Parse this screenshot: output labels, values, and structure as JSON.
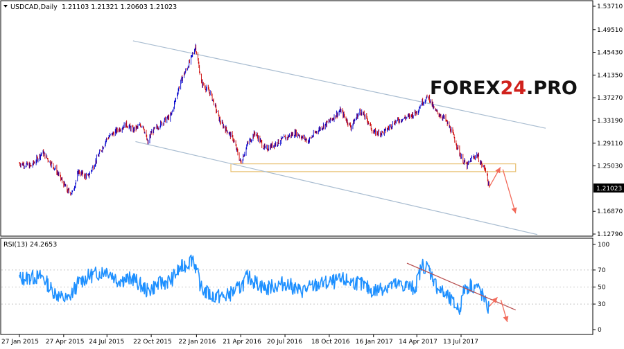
{
  "chart_data": [
    {
      "type": "candlestick",
      "symbol": "USDCAD,Daily",
      "ohlc_label": "1.21103 1.21321 1.20603 1.21023",
      "last_price_label": "1.21023",
      "last_price": 1.21023,
      "ylim": [
        1.1279,
        1.5371
      ],
      "y_ticks": [
        "1.53710",
        "1.49510",
        "1.45430",
        "1.41350",
        "1.37270",
        "1.33190",
        "1.29110",
        "1.25030",
        "1.21023",
        "1.16870",
        "1.12790"
      ],
      "x_tick_labels": [
        "27 Jan 2015",
        "27 Apr 2015",
        "24 Jul 2015",
        "22 Oct 2015",
        "22 Jan 2016",
        "21 Apr 2016",
        "20 Jul 2016",
        "18 Oct 2016",
        "16 Jan 2017",
        "14 Apr 2017",
        "13 Jul 2017"
      ],
      "price_path": [
        [
          "27 Jan 2015",
          1.255
        ],
        [
          "20 Feb 2015",
          1.25
        ],
        [
          "15 Mar 2015",
          1.275
        ],
        [
          "10 Apr 2015",
          1.245
        ],
        [
          "05 May 2015",
          1.205
        ],
        [
          "15 May 2015",
          1.202
        ],
        [
          "27 May 2015",
          1.24
        ],
        [
          "15 Jun 2015",
          1.23
        ],
        [
          "24 Jul 2015",
          1.3
        ],
        [
          "15 Aug 2015",
          1.315
        ],
        [
          "01 Sep 2015",
          1.325
        ],
        [
          "15 Sep 2015",
          1.315
        ],
        [
          "05 Oct 2015",
          1.325
        ],
        [
          "15 Oct 2015",
          1.29
        ],
        [
          "22 Oct 2015",
          1.31
        ],
        [
          "15 Nov 2015",
          1.33
        ],
        [
          "01 Dec 2015",
          1.34
        ],
        [
          "20 Dec 2015",
          1.4
        ],
        [
          "10 Jan 2016",
          1.44
        ],
        [
          "20 Jan 2016",
          1.466
        ],
        [
          "01 Feb 2016",
          1.4
        ],
        [
          "20 Feb 2016",
          1.38
        ],
        [
          "10 Mar 2016",
          1.33
        ],
        [
          "05 Apr 2016",
          1.3
        ],
        [
          "21 Apr 2016",
          1.256
        ],
        [
          "05 May 2016",
          1.29
        ],
        [
          "20 May 2016",
          1.31
        ],
        [
          "10 Jun 2016",
          1.28
        ],
        [
          "20 Jul 2016",
          1.3
        ],
        [
          "10 Aug 2016",
          1.31
        ],
        [
          "05 Sep 2016",
          1.295
        ],
        [
          "25 Sep 2016",
          1.315
        ],
        [
          "18 Oct 2016",
          1.33
        ],
        [
          "10 Nov 2016",
          1.35
        ],
        [
          "01 Dec 2016",
          1.32
        ],
        [
          "20 Dec 2016",
          1.35
        ],
        [
          "05 Jan 2017",
          1.33
        ],
        [
          "16 Jan 2017",
          1.31
        ],
        [
          "05 Feb 2017",
          1.31
        ],
        [
          "01 Mar 2017",
          1.33
        ],
        [
          "01 Apr 2017",
          1.34
        ],
        [
          "14 Apr 2017",
          1.348
        ],
        [
          "25 Apr 2017",
          1.365
        ],
        [
          "08 May 2017",
          1.375
        ],
        [
          "20 May 2017",
          1.35
        ],
        [
          "10 Jun 2017",
          1.335
        ],
        [
          "25 Jun 2017",
          1.31
        ],
        [
          "13 Jul 2017",
          1.266
        ],
        [
          "25 Jul 2017",
          1.25
        ],
        [
          "05 Aug 2017",
          1.265
        ],
        [
          "15 Aug 2017",
          1.27
        ],
        [
          "25 Aug 2017",
          1.25
        ],
        [
          "01 Sep 2017",
          1.245
        ],
        [
          "08 Sep 2017",
          1.21
        ]
      ],
      "channel_lines": [
        [
          [
            "15 Sep 2015",
            1.475
          ],
          [
            "01 Jan 2018",
            1.318
          ]
        ],
        [
          [
            "20 Sep 2015",
            1.294
          ],
          [
            "15 Dec 2017",
            1.127
          ]
        ]
      ],
      "support_zone": {
        "from": "01 Apr 2016",
        "to": "01 Nov 2017",
        "low": 1.24,
        "high": 1.254
      },
      "forecast_arrows": [
        [
          [
            "08 Sep 2017",
            1.212
          ],
          [
            "01 Oct 2017",
            1.248
          ]
        ],
        [
          [
            "06 Oct 2017",
            1.244
          ],
          [
            "01 Nov 2017",
            1.165
          ]
        ]
      ]
    },
    {
      "type": "line",
      "indicator": "RSI(13)",
      "label": "RSI(13) 24.2653",
      "ylim": [
        0,
        100
      ],
      "y_ticks": [
        "100",
        "70",
        "50",
        "30",
        "0"
      ],
      "levels": [
        70,
        50,
        30
      ],
      "rsi_path": [
        [
          "27 Jan 2015",
          60
        ],
        [
          "15 Mar 2015",
          62
        ],
        [
          "01 Apr 2015",
          48
        ],
        [
          "20 Apr 2015",
          38
        ],
        [
          "05 May 2015",
          35
        ],
        [
          "27 May 2015",
          55
        ],
        [
          "15 Jun 2015",
          62
        ],
        [
          "24 Jul 2015",
          70
        ],
        [
          "15 Aug 2015",
          58
        ],
        [
          "15 Sep 2015",
          60
        ],
        [
          "15 Oct 2015",
          45
        ],
        [
          "01 Nov 2015",
          52
        ],
        [
          "01 Dec 2015",
          58
        ],
        [
          "20 Dec 2015",
          72
        ],
        [
          "05 Jan 2016",
          78
        ],
        [
          "15 Jan 2016",
          85
        ],
        [
          "01 Feb 2016",
          48
        ],
        [
          "20 Feb 2016",
          40
        ],
        [
          "20 Mar 2016",
          38
        ],
        [
          "21 Apr 2016",
          50
        ],
        [
          "05 May 2016",
          62
        ],
        [
          "10 Jun 2016",
          48
        ],
        [
          "20 Jul 2016",
          55
        ],
        [
          "20 Aug 2016",
          45
        ],
        [
          "20 Sep 2016",
          52
        ],
        [
          "18 Oct 2016",
          55
        ],
        [
          "15 Nov 2016",
          58
        ],
        [
          "15 Dec 2016",
          55
        ],
        [
          "16 Jan 2017",
          45
        ],
        [
          "15 Feb 2017",
          52
        ],
        [
          "20 Mar 2017",
          52
        ],
        [
          "10 Apr 2017",
          48
        ],
        [
          "25 Apr 2017",
          76
        ],
        [
          "08 May 2017",
          72
        ],
        [
          "25 May 2017",
          50
        ],
        [
          "15 Jun 2017",
          38
        ],
        [
          "01 Jul 2017",
          28
        ],
        [
          "10 Jul 2017",
          24
        ],
        [
          "20 Jul 2017",
          48
        ],
        [
          "01 Aug 2017",
          52
        ],
        [
          "15 Aug 2017",
          50
        ],
        [
          "25 Aug 2017",
          40
        ],
        [
          "01 Sep 2017",
          30
        ],
        [
          "08 Sep 2017",
          24.27
        ]
      ],
      "trend_line": [
        [
          "25 Mar 2017",
          78
        ],
        [
          "01 Nov 2017",
          23
        ]
      ],
      "forecast_arrows": [
        [
          [
            "08 Sep 2017",
            27
          ],
          [
            "25 Sep 2017",
            38
          ]
        ],
        [
          [
            "02 Oct 2017",
            35
          ],
          [
            "15 Oct 2017",
            9
          ]
        ]
      ]
    }
  ],
  "brand": {
    "left": "FOREX",
    "middle": "24",
    "right": ".PRO"
  },
  "colors": {
    "bull": "#0000cc",
    "bear": "#cc0000",
    "rsi": "#1e90ff",
    "channel": "#a8bcd0",
    "zone": "#e8c070",
    "arrow": "#f26b5b",
    "trend": "#b85050",
    "brand_text": "#111111",
    "brand_accent": "#d0211c"
  }
}
